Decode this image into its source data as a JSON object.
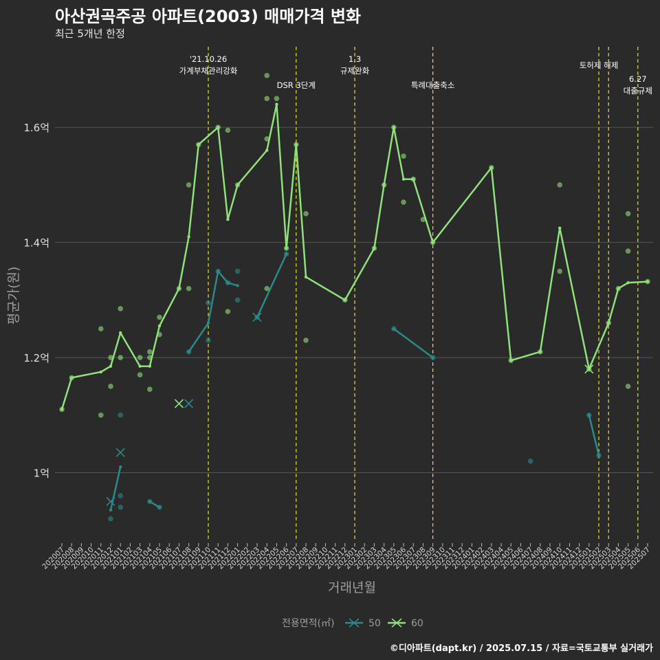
{
  "header": {
    "title": "아산권곡주공 아파트(2003) 매매가격 변화",
    "subtitle": "최근 5개년 한정"
  },
  "caption": "©디아파트(dapt.kr) / 2025.07.15 / 자료=국토교통부 실거래가",
  "colors": {
    "s50": "#2a8a8a",
    "s60": "#8fe27a",
    "event_line": "#e8e030",
    "grid": "#555555",
    "bg": "#2b2a2a"
  },
  "chart_data": {
    "type": "line",
    "title": "아산권곡주공 아파트(2003) 매매가격 변화",
    "subtitle": "최근 5개년 한정",
    "xlabel": "거래년월",
    "ylabel": "평균가(원)",
    "ylim": [
      0.88,
      1.74
    ],
    "yticks": [
      {
        "value": 1.0,
        "label": "1억"
      },
      {
        "value": 1.2,
        "label": "1.2억"
      },
      {
        "value": 1.4,
        "label": "1.4억"
      },
      {
        "value": 1.6,
        "label": "1.6억"
      }
    ],
    "months": [
      "202007",
      "202008",
      "202009",
      "202010",
      "202011",
      "202012",
      "202101",
      "202102",
      "202103",
      "202104",
      "202105",
      "202106",
      "202107",
      "202108",
      "202109",
      "202110",
      "202111",
      "202112",
      "202201",
      "202202",
      "202203",
      "202204",
      "202205",
      "202206",
      "202207",
      "202208",
      "202209",
      "202210",
      "202211",
      "202212",
      "202301",
      "202302",
      "202303",
      "202304",
      "202305",
      "202306",
      "202307",
      "202308",
      "202309",
      "202310",
      "202311",
      "202312",
      "202401",
      "202402",
      "202403",
      "202404",
      "202405",
      "202406",
      "202407",
      "202408",
      "202409",
      "202410",
      "202411",
      "202412",
      "202501",
      "202502",
      "202503",
      "202504",
      "202505",
      "202506",
      "202507"
    ],
    "legend": {
      "title": "전용면적(㎡)",
      "entries": [
        "50",
        "60"
      ],
      "placement": "bottom"
    },
    "events": [
      {
        "month": "202110",
        "lines": [
          "'21.10.26",
          "가계부채관리강화"
        ]
      },
      {
        "month": "202207",
        "lines": [
          "DSR 3단계"
        ]
      },
      {
        "month": "202301",
        "lines": [
          "1.3",
          "규제완화"
        ]
      },
      {
        "month": "202309",
        "lines": [
          "특례대출축소"
        ]
      },
      {
        "month": "202502",
        "lines": [
          "토허제 해제"
        ]
      },
      {
        "month": "202503",
        "lines": []
      },
      {
        "month": "202506",
        "lines": [
          "6.27",
          "대출규제"
        ]
      }
    ],
    "series": [
      {
        "name": "50",
        "line_segments": [
          [
            [
              "202012",
              0.935
            ],
            [
              "202101",
              1.01
            ]
          ],
          [
            [
              "202104",
              0.95
            ],
            [
              "202105",
              0.94
            ]
          ],
          [
            [
              "202108",
              1.21
            ],
            [
              "202110",
              1.26
            ],
            [
              "202111",
              1.35
            ],
            [
              "202112",
              1.33
            ],
            [
              "202201",
              1.325
            ]
          ],
          [
            [
              "202203",
              1.27
            ],
            [
              "202206",
              1.38
            ]
          ],
          [
            [
              "202305",
              1.25
            ],
            [
              "202309",
              1.2
            ]
          ],
          [
            [
              "202501",
              1.1
            ],
            [
              "202502",
              1.03
            ]
          ]
        ],
        "points": [
          [
            "202012",
            0.92
          ],
          [
            "202101",
            0.96
          ],
          [
            "202101",
            0.94
          ],
          [
            "202101",
            1.1
          ],
          [
            "202104",
            0.95
          ],
          [
            "202105",
            0.94
          ],
          [
            "202108",
            1.21
          ],
          [
            "202110",
            1.23
          ],
          [
            "202110",
            1.295
          ],
          [
            "202111",
            1.35
          ],
          [
            "202112",
            1.33
          ],
          [
            "202201",
            1.35
          ],
          [
            "202201",
            1.3
          ],
          [
            "202203",
            1.27
          ],
          [
            "202206",
            1.38
          ],
          [
            "202305",
            1.25
          ],
          [
            "202309",
            1.2
          ],
          [
            "202407",
            1.02
          ],
          [
            "202501",
            1.1
          ],
          [
            "202502",
            1.03
          ]
        ],
        "crosses": [
          [
            "202012",
            0.95
          ],
          [
            "202101",
            1.035
          ],
          [
            "202107",
            1.12
          ],
          [
            "202108",
            1.12
          ],
          [
            "202203",
            1.27
          ]
        ]
      },
      {
        "name": "60",
        "line_segments": [
          [
            [
              "202007",
              1.11
            ],
            [
              "202008",
              1.165
            ],
            [
              "202011",
              1.175
            ],
            [
              "202012",
              1.185
            ],
            [
              "202101",
              1.243
            ],
            [
              "202103",
              1.185
            ],
            [
              "202104",
              1.185
            ],
            [
              "202105",
              1.255
            ],
            [
              "202107",
              1.32
            ],
            [
              "202108",
              1.41
            ],
            [
              "202109",
              1.57
            ],
            [
              "202111",
              1.6
            ],
            [
              "202112",
              1.44
            ],
            [
              "202201",
              1.5
            ],
            [
              "202204",
              1.56
            ],
            [
              "202205",
              1.64
            ],
            [
              "202206",
              1.39
            ],
            [
              "202207",
              1.57
            ],
            [
              "202208",
              1.34
            ],
            [
              "202212",
              1.3
            ],
            [
              "202303",
              1.39
            ],
            [
              "202304",
              1.5
            ],
            [
              "202305",
              1.6
            ],
            [
              "202306",
              1.51
            ],
            [
              "202307",
              1.51
            ],
            [
              "202309",
              1.4
            ],
            [
              "202403",
              1.53
            ],
            [
              "202405",
              1.195
            ],
            [
              "202408",
              1.21
            ],
            [
              "202410",
              1.425
            ],
            [
              "202501",
              1.18
            ],
            [
              "202503",
              1.26
            ],
            [
              "202504",
              1.32
            ],
            [
              "202505",
              1.33
            ],
            [
              "202507",
              1.332
            ]
          ]
        ],
        "points": [
          [
            "202007",
            1.11
          ],
          [
            "202008",
            1.165
          ],
          [
            "202011",
            1.1
          ],
          [
            "202011",
            1.25
          ],
          [
            "202012",
            1.15
          ],
          [
            "202012",
            1.2
          ],
          [
            "202101",
            1.285
          ],
          [
            "202101",
            1.2
          ],
          [
            "202103",
            1.2
          ],
          [
            "202103",
            1.17
          ],
          [
            "202104",
            1.21
          ],
          [
            "202104",
            1.2
          ],
          [
            "202104",
            1.145
          ],
          [
            "202105",
            1.27
          ],
          [
            "202105",
            1.24
          ],
          [
            "202107",
            1.32
          ],
          [
            "202108",
            1.5
          ],
          [
            "202108",
            1.32
          ],
          [
            "202109",
            1.57
          ],
          [
            "202111",
            1.6
          ],
          [
            "202112",
            1.595
          ],
          [
            "202112",
            1.28
          ],
          [
            "202201",
            1.5
          ],
          [
            "202204",
            1.69
          ],
          [
            "202204",
            1.65
          ],
          [
            "202204",
            1.58
          ],
          [
            "202204",
            1.32
          ],
          [
            "202205",
            1.65
          ],
          [
            "202206",
            1.39
          ],
          [
            "202207",
            1.57
          ],
          [
            "202208",
            1.45
          ],
          [
            "202208",
            1.23
          ],
          [
            "202212",
            1.3
          ],
          [
            "202303",
            1.39
          ],
          [
            "202304",
            1.5
          ],
          [
            "202305",
            1.6
          ],
          [
            "202306",
            1.55
          ],
          [
            "202306",
            1.47
          ],
          [
            "202307",
            1.51
          ],
          [
            "202308",
            1.44
          ],
          [
            "202309",
            1.4
          ],
          [
            "202403",
            1.53
          ],
          [
            "202405",
            1.195
          ],
          [
            "202408",
            1.21
          ],
          [
            "202410",
            1.5
          ],
          [
            "202410",
            1.35
          ],
          [
            "202501",
            1.18
          ],
          [
            "202503",
            1.26
          ],
          [
            "202504",
            1.32
          ],
          [
            "202505",
            1.45
          ],
          [
            "202505",
            1.385
          ],
          [
            "202505",
            1.15
          ],
          [
            "202507",
            1.332
          ]
        ],
        "crosses": [
          [
            "202107",
            1.12
          ],
          [
            "202501",
            1.18
          ]
        ]
      }
    ]
  }
}
